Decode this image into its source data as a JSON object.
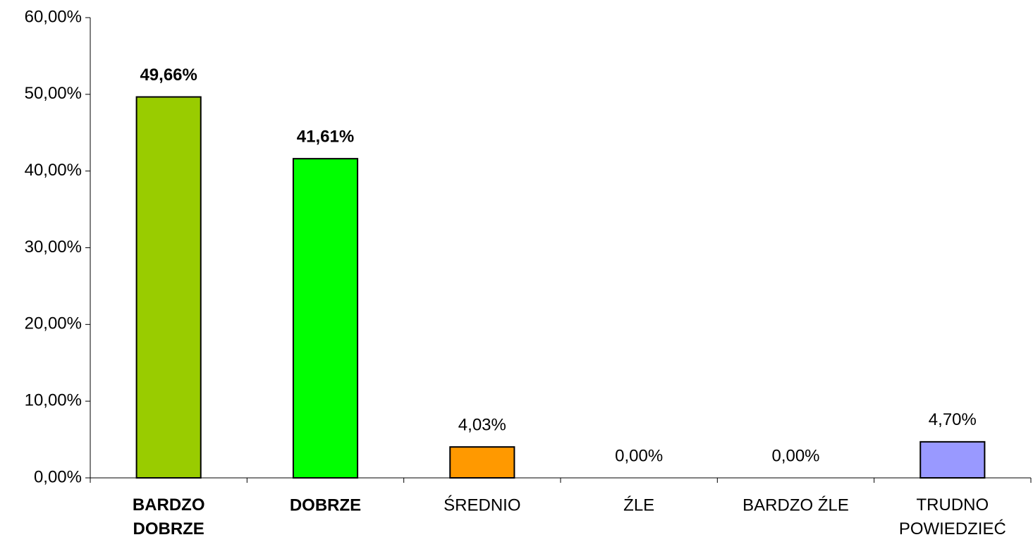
{
  "chart_data": {
    "type": "bar",
    "categories": [
      "BARDZO DOBRZE",
      "DOBRZE",
      "ŚREDNIO",
      "ŹLE",
      "BARDZO ŹLE",
      "TRUDNO POWIEDZIEĆ"
    ],
    "values": [
      49.66,
      41.61,
      4.03,
      0,
      0,
      4.7
    ],
    "value_labels": [
      "49,66%",
      "41,61%",
      "4,03%",
      "0,00%",
      "0,00%",
      "4,70%"
    ],
    "colors": [
      "#99cc00",
      "#00ff00",
      "#ff9900",
      "#ff0000",
      "#993366",
      "#9999ff"
    ],
    "emphasis": [
      true,
      true,
      false,
      false,
      false,
      false
    ],
    "ylim": [
      0,
      60
    ],
    "yticks": [
      {
        "value": 0,
        "label": "0,00%"
      },
      {
        "value": 10,
        "label": "10,00%"
      },
      {
        "value": 20,
        "label": "20,00%"
      },
      {
        "value": 30,
        "label": "30,00%"
      },
      {
        "value": 40,
        "label": "40,00%"
      },
      {
        "value": 50,
        "label": "50,00%"
      },
      {
        "value": 60,
        "label": "60,00%"
      }
    ],
    "grid": false
  }
}
